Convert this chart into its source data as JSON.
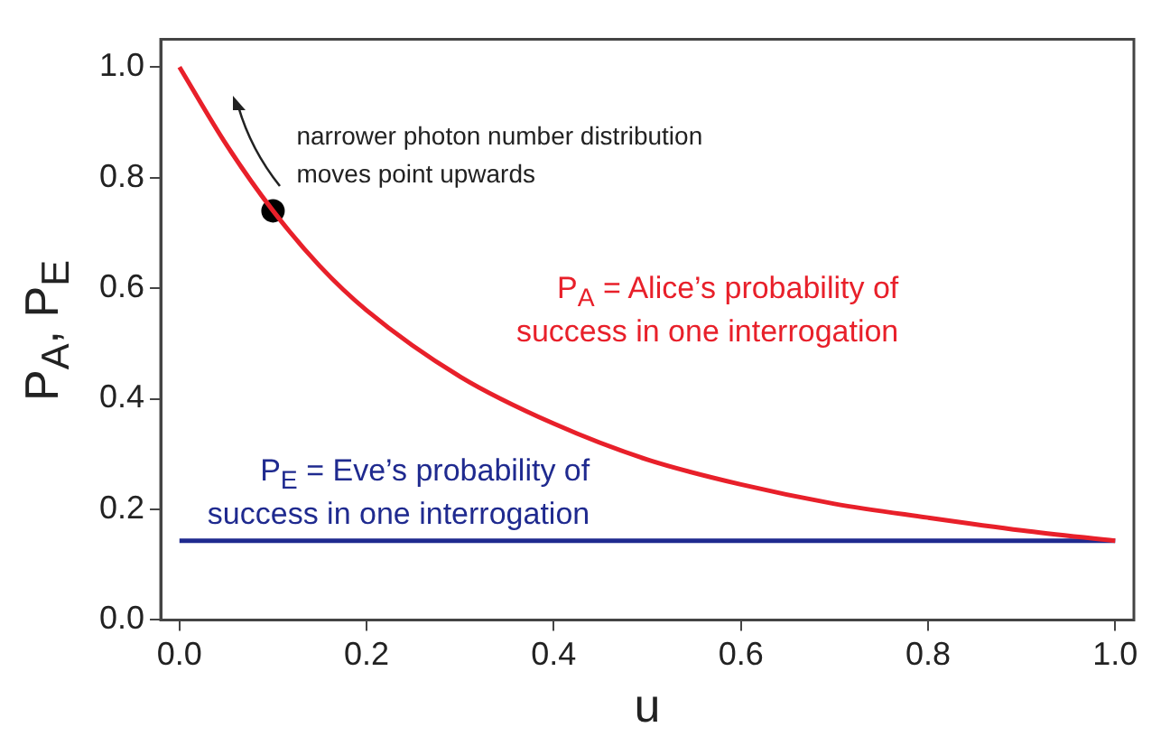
{
  "chart_data": {
    "type": "line",
    "xlabel": "u",
    "ylabel": "P$_{A}$, P$_{E}$",
    "x": [
      0,
      0.05,
      0.1,
      0.15,
      0.2,
      0.3,
      0.4,
      0.5,
      0.6,
      0.7,
      0.8,
      0.9,
      1.0
    ],
    "series": [
      {
        "name": "P$_{A}$ = Alice’s probability of\nsuccess in one interrogation",
        "color": "#e8202a",
        "values": [
          1.0,
          0.86,
          0.74,
          0.64,
          0.56,
          0.44,
          0.355,
          0.29,
          0.245,
          0.21,
          0.185,
          0.162,
          0.143
        ]
      },
      {
        "name": "P$_{E}$ = Eve’s probability of\nsuccess in one interrogation",
        "color": "#1f2a8f",
        "values": [
          0.143,
          0.143,
          0.143,
          0.143,
          0.143,
          0.143,
          0.143,
          0.143,
          0.143,
          0.143,
          0.143,
          0.143,
          0.143
        ]
      },
      {
        "type": "scatter",
        "marker": "circle",
        "color": "#000000",
        "x": [
          0.1
        ],
        "values": [
          0.74
        ]
      }
    ],
    "annotations": [
      {
        "text": "narrower photon number distribution\nmoves point upwards",
        "x": 0.1,
        "y": 0.74
      }
    ],
    "xlim": [
      -0.02,
      1.02
    ],
    "xticks": [
      {
        "value": 0,
        "label": "0.0"
      },
      0.2,
      0.4,
      0.6,
      0.8,
      {
        "value": 1,
        "label": "1.0"
      }
    ],
    "ylim": [
      0,
      1.05
    ],
    "yticks": [
      {
        "value": 0,
        "label": "0.0"
      },
      0.2,
      0.4,
      0.6,
      0.8,
      {
        "value": 1,
        "label": "1.0"
      }
    ],
    "grid": false,
    "legend": false,
    "marker": "none",
    "line_style": "solid"
  }
}
